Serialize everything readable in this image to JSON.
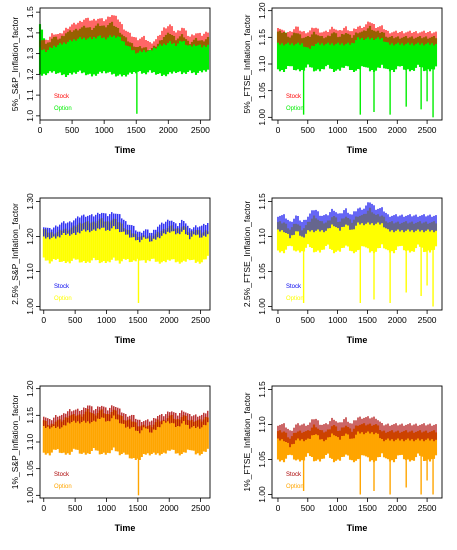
{
  "chart_data": [
    {
      "type": "line",
      "xlabel": "Time",
      "ylabel": "5%_S&P_Inflation_factor",
      "xlim": [
        0,
        2650
      ],
      "ylim": [
        0.98,
        1.52
      ],
      "xticks": [
        0,
        500,
        1000,
        1500,
        2000,
        2500
      ],
      "yticks": [
        1.0,
        1.1,
        1.2,
        1.3,
        1.4,
        1.5
      ],
      "ytick_labels": [
        "1.0",
        "1.1",
        "1.2",
        "1.3",
        "1.4",
        "1.5"
      ],
      "series": [
        {
          "name": "Stock",
          "color": "#ff0000",
          "style": "hair",
          "upper": [
            1.37,
            1.36,
            1.4,
            1.39,
            1.42,
            1.44,
            1.45,
            1.47,
            1.46,
            1.47,
            1.46,
            1.49,
            1.47,
            1.42,
            1.39,
            1.37,
            1.38,
            1.35,
            1.37,
            1.42,
            1.44,
            1.4,
            1.43,
            1.38,
            1.4,
            1.39,
            1.41
          ],
          "lower": [
            1.33,
            1.32,
            1.34,
            1.35,
            1.36,
            1.37,
            1.38,
            1.38,
            1.38,
            1.39,
            1.38,
            1.39,
            1.39,
            1.36,
            1.33,
            1.31,
            1.32,
            1.32,
            1.34,
            1.35,
            1.36,
            1.35,
            1.37,
            1.34,
            1.35,
            1.34,
            1.35
          ]
        },
        {
          "name": "Option",
          "color": "#00ee00",
          "style": "band",
          "upper": [
            1.44,
            1.34,
            1.38,
            1.37,
            1.4,
            1.41,
            1.42,
            1.43,
            1.42,
            1.44,
            1.43,
            1.45,
            1.42,
            1.38,
            1.35,
            1.33,
            1.33,
            1.32,
            1.34,
            1.38,
            1.4,
            1.37,
            1.39,
            1.35,
            1.37,
            1.36,
            1.38
          ],
          "lower": [
            1.2,
            1.21,
            1.22,
            1.21,
            1.2,
            1.21,
            1.22,
            1.21,
            1.2,
            1.21,
            1.22,
            1.21,
            1.2,
            1.2,
            1.21,
            1.22,
            1.21,
            1.22,
            1.21,
            1.2,
            1.21,
            1.22,
            1.21,
            1.22,
            1.21,
            1.22,
            1.23
          ],
          "spikes": [
            [
              1510,
              1.01
            ]
          ]
        }
      ],
      "legend": "middle-left"
    },
    {
      "type": "line",
      "xlabel": "Time",
      "ylabel": "5%_FTSE_Inflation_factor",
      "xlim": [
        -100,
        2750
      ],
      "ylim": [
        0.995,
        1.205
      ],
      "xticks": [
        0,
        500,
        1000,
        1500,
        2000,
        2500
      ],
      "yticks": [
        1.0,
        1.05,
        1.1,
        1.15,
        1.2
      ],
      "ytick_labels": [
        "1.00",
        "1.05",
        "1.10",
        "1.15",
        "1.20"
      ],
      "series": [
        {
          "name": "Stock",
          "color": "#ff0000",
          "style": "hair",
          "upper": [
            1.17,
            1.16,
            1.16,
            1.17,
            1.16,
            1.16,
            1.17,
            1.16,
            1.16,
            1.17,
            1.16,
            1.17,
            1.16,
            1.17,
            1.17,
            1.18,
            1.17,
            1.17,
            1.16,
            1.16,
            1.16,
            1.16,
            1.16,
            1.16,
            1.16,
            1.16,
            1.16
          ],
          "lower": [
            1.14,
            1.14,
            1.14,
            1.14,
            1.14,
            1.13,
            1.14,
            1.14,
            1.14,
            1.14,
            1.14,
            1.14,
            1.14,
            1.15,
            1.15,
            1.15,
            1.15,
            1.15,
            1.14,
            1.14,
            1.14,
            1.14,
            1.14,
            1.14,
            1.14,
            1.14,
            1.14
          ]
        },
        {
          "name": "Option",
          "color": "#00ee00",
          "style": "band",
          "upper": [
            1.16,
            1.16,
            1.15,
            1.16,
            1.15,
            1.15,
            1.16,
            1.15,
            1.15,
            1.16,
            1.15,
            1.16,
            1.15,
            1.16,
            1.16,
            1.17,
            1.16,
            1.16,
            1.15,
            1.15,
            1.15,
            1.15,
            1.15,
            1.15,
            1.15,
            1.15,
            1.15
          ],
          "lower": [
            1.09,
            1.09,
            1.1,
            1.09,
            1.09,
            1.1,
            1.09,
            1.09,
            1.1,
            1.09,
            1.09,
            1.1,
            1.09,
            1.09,
            1.1,
            1.09,
            1.09,
            1.1,
            1.09,
            1.09,
            1.1,
            1.09,
            1.09,
            1.1,
            1.09,
            1.09,
            1.1
          ],
          "spikes": [
            [
              430,
              1.005
            ],
            [
              1380,
              1.005
            ],
            [
              1610,
              1.01
            ],
            [
              1880,
              1.005
            ],
            [
              2150,
              1.02
            ],
            [
              2400,
              1.015
            ],
            [
              2500,
              1.03
            ],
            [
              2600,
              1.0
            ]
          ]
        }
      ],
      "legend": "middle-left"
    },
    {
      "type": "line",
      "xlabel": "Time",
      "ylabel": "2.5%_S&P_Inflation_factor",
      "xlim": [
        -60,
        2650
      ],
      "ylim": [
        0.99,
        1.31
      ],
      "xticks": [
        0,
        500,
        1000,
        1500,
        2000,
        2500
      ],
      "yticks": [
        1.0,
        1.1,
        1.2,
        1.3
      ],
      "ytick_labels": [
        "1.00",
        "1.10",
        "1.20",
        "1.30"
      ],
      "series": [
        {
          "name": "Stock",
          "color": "#0000ee",
          "style": "hair",
          "upper": [
            1.23,
            1.22,
            1.23,
            1.24,
            1.24,
            1.25,
            1.26,
            1.26,
            1.26,
            1.27,
            1.26,
            1.27,
            1.26,
            1.24,
            1.23,
            1.21,
            1.22,
            1.21,
            1.23,
            1.24,
            1.25,
            1.23,
            1.25,
            1.22,
            1.23,
            1.23,
            1.24
          ],
          "lower": [
            1.2,
            1.2,
            1.2,
            1.21,
            1.21,
            1.21,
            1.22,
            1.22,
            1.22,
            1.23,
            1.22,
            1.23,
            1.22,
            1.21,
            1.2,
            1.19,
            1.2,
            1.19,
            1.2,
            1.21,
            1.22,
            1.21,
            1.22,
            1.2,
            1.21,
            1.2,
            1.21
          ]
        },
        {
          "name": "Option",
          "color": "#ffff00",
          "style": "band",
          "upper": [
            1.22,
            1.21,
            1.21,
            1.22,
            1.22,
            1.23,
            1.24,
            1.24,
            1.24,
            1.25,
            1.24,
            1.25,
            1.24,
            1.22,
            1.21,
            1.2,
            1.2,
            1.2,
            1.21,
            1.22,
            1.23,
            1.22,
            1.23,
            1.21,
            1.22,
            1.21,
            1.22
          ],
          "lower": [
            1.14,
            1.13,
            1.14,
            1.13,
            1.13,
            1.14,
            1.13,
            1.13,
            1.14,
            1.13,
            1.13,
            1.14,
            1.13,
            1.14,
            1.13,
            1.14,
            1.13,
            1.14,
            1.13,
            1.13,
            1.14,
            1.13,
            1.13,
            1.14,
            1.13,
            1.13,
            1.15
          ],
          "spikes": [
            [
              1510,
              1.01
            ]
          ]
        }
      ],
      "legend": "middle-left"
    },
    {
      "type": "line",
      "xlabel": "Time",
      "ylabel": "2.5%_FTSE_Inflation_factor",
      "xlim": [
        -100,
        2750
      ],
      "ylim": [
        0.995,
        1.155
      ],
      "xticks": [
        0,
        500,
        1000,
        1500,
        2000,
        2500
      ],
      "yticks": [
        1.0,
        1.05,
        1.1,
        1.15
      ],
      "ytick_labels": [
        "1.00",
        "1.05",
        "1.10",
        "1.15"
      ],
      "series": [
        {
          "name": "Stock",
          "color": "#0000ee",
          "style": "hair",
          "upper": [
            1.13,
            1.13,
            1.12,
            1.13,
            1.12,
            1.13,
            1.14,
            1.13,
            1.13,
            1.14,
            1.13,
            1.14,
            1.13,
            1.14,
            1.14,
            1.15,
            1.14,
            1.14,
            1.13,
            1.13,
            1.13,
            1.13,
            1.13,
            1.13,
            1.13,
            1.13,
            1.13
          ],
          "lower": [
            1.11,
            1.11,
            1.1,
            1.11,
            1.1,
            1.11,
            1.11,
            1.11,
            1.11,
            1.12,
            1.11,
            1.12,
            1.11,
            1.12,
            1.12,
            1.12,
            1.12,
            1.12,
            1.11,
            1.11,
            1.11,
            1.11,
            1.11,
            1.11,
            1.11,
            1.11,
            1.11
          ]
        },
        {
          "name": "Option",
          "color": "#ffff00",
          "style": "band",
          "upper": [
            1.12,
            1.12,
            1.11,
            1.12,
            1.11,
            1.12,
            1.13,
            1.12,
            1.12,
            1.13,
            1.12,
            1.13,
            1.12,
            1.13,
            1.13,
            1.14,
            1.13,
            1.13,
            1.12,
            1.12,
            1.12,
            1.12,
            1.12,
            1.12,
            1.12,
            1.12,
            1.12
          ],
          "lower": [
            1.08,
            1.08,
            1.09,
            1.08,
            1.08,
            1.09,
            1.08,
            1.08,
            1.09,
            1.08,
            1.08,
            1.09,
            1.08,
            1.08,
            1.09,
            1.08,
            1.08,
            1.09,
            1.08,
            1.08,
            1.09,
            1.08,
            1.08,
            1.09,
            1.08,
            1.08,
            1.09
          ],
          "spikes": [
            [
              430,
              1.005
            ],
            [
              1380,
              1.005
            ],
            [
              1610,
              1.01
            ],
            [
              1880,
              1.005
            ],
            [
              2150,
              1.02
            ],
            [
              2400,
              1.015
            ],
            [
              2500,
              1.03
            ],
            [
              2600,
              1.0
            ]
          ]
        }
      ],
      "legend": "middle-left"
    },
    {
      "type": "line",
      "xlabel": "Time",
      "ylabel": "1%_S&P_Inflation_factor",
      "xlim": [
        -60,
        2650
      ],
      "ylim": [
        0.995,
        1.205
      ],
      "xticks": [
        0,
        500,
        1000,
        1500,
        2000,
        2500
      ],
      "yticks": [
        1.0,
        1.05,
        1.1,
        1.15,
        1.2
      ],
      "ytick_labels": [
        "1.00",
        "1.05",
        "1.10",
        "1.15",
        "1.20"
      ],
      "series": [
        {
          "name": "Stock",
          "color": "#aa0000",
          "style": "hair",
          "upper": [
            1.15,
            1.14,
            1.15,
            1.15,
            1.16,
            1.16,
            1.16,
            1.17,
            1.16,
            1.17,
            1.16,
            1.17,
            1.16,
            1.15,
            1.15,
            1.14,
            1.14,
            1.14,
            1.15,
            1.15,
            1.16,
            1.15,
            1.16,
            1.15,
            1.15,
            1.15,
            1.16
          ],
          "lower": [
            1.13,
            1.13,
            1.13,
            1.13,
            1.14,
            1.14,
            1.14,
            1.14,
            1.14,
            1.15,
            1.14,
            1.15,
            1.14,
            1.13,
            1.13,
            1.12,
            1.13,
            1.12,
            1.13,
            1.14,
            1.14,
            1.13,
            1.14,
            1.13,
            1.13,
            1.13,
            1.14
          ]
        },
        {
          "name": "Option",
          "color": "#ffa500",
          "style": "band",
          "upper": [
            1.14,
            1.13,
            1.14,
            1.14,
            1.15,
            1.15,
            1.15,
            1.16,
            1.15,
            1.16,
            1.15,
            1.16,
            1.15,
            1.14,
            1.14,
            1.13,
            1.13,
            1.13,
            1.14,
            1.14,
            1.15,
            1.14,
            1.15,
            1.14,
            1.14,
            1.14,
            1.15
          ],
          "lower": [
            1.08,
            1.08,
            1.09,
            1.08,
            1.08,
            1.09,
            1.08,
            1.08,
            1.09,
            1.08,
            1.08,
            1.09,
            1.08,
            1.08,
            1.07,
            1.07,
            1.08,
            1.08,
            1.08,
            1.08,
            1.09,
            1.08,
            1.08,
            1.09,
            1.08,
            1.08,
            1.09
          ],
          "spikes": [
            [
              1510,
              1.0
            ]
          ]
        }
      ],
      "legend": "middle-left"
    },
    {
      "type": "line",
      "xlabel": "Time",
      "ylabel": "1%_FTSE_Inflation_factor",
      "xlim": [
        -100,
        2750
      ],
      "ylim": [
        0.995,
        1.155
      ],
      "xticks": [
        0,
        500,
        1000,
        1500,
        2000,
        2500
      ],
      "yticks": [
        1.0,
        1.05,
        1.1,
        1.15
      ],
      "ytick_labels": [
        "1.00",
        "1.05",
        "1.10",
        "1.15"
      ],
      "series": [
        {
          "name": "Stock",
          "color": "#aa0000",
          "style": "hair",
          "upper": [
            1.1,
            1.1,
            1.09,
            1.1,
            1.1,
            1.1,
            1.11,
            1.1,
            1.1,
            1.11,
            1.1,
            1.11,
            1.1,
            1.11,
            1.11,
            1.11,
            1.11,
            1.1,
            1.1,
            1.1,
            1.1,
            1.1,
            1.1,
            1.1,
            1.1,
            1.1,
            1.1
          ],
          "lower": [
            1.08,
            1.08,
            1.07,
            1.08,
            1.08,
            1.08,
            1.09,
            1.08,
            1.08,
            1.09,
            1.08,
            1.09,
            1.08,
            1.09,
            1.09,
            1.09,
            1.09,
            1.08,
            1.08,
            1.08,
            1.08,
            1.08,
            1.08,
            1.08,
            1.08,
            1.08,
            1.08
          ]
        },
        {
          "name": "Option",
          "color": "#ffa500",
          "style": "band",
          "upper": [
            1.09,
            1.09,
            1.08,
            1.09,
            1.09,
            1.09,
            1.1,
            1.09,
            1.09,
            1.1,
            1.09,
            1.1,
            1.09,
            1.1,
            1.1,
            1.1,
            1.1,
            1.09,
            1.09,
            1.09,
            1.09,
            1.09,
            1.09,
            1.09,
            1.09,
            1.09,
            1.09
          ],
          "lower": [
            1.05,
            1.05,
            1.06,
            1.05,
            1.05,
            1.06,
            1.05,
            1.05,
            1.06,
            1.05,
            1.05,
            1.06,
            1.05,
            1.05,
            1.06,
            1.05,
            1.05,
            1.06,
            1.05,
            1.05,
            1.06,
            1.05,
            1.05,
            1.06,
            1.05,
            1.05,
            1.06
          ],
          "spikes": [
            [
              430,
              1.005
            ],
            [
              1380,
              1.0
            ],
            [
              1610,
              1.005
            ],
            [
              1880,
              1.0
            ],
            [
              2150,
              1.01
            ],
            [
              2400,
              1.0
            ],
            [
              2500,
              1.02
            ],
            [
              2600,
              1.0
            ]
          ]
        }
      ],
      "legend": "middle-left"
    }
  ]
}
